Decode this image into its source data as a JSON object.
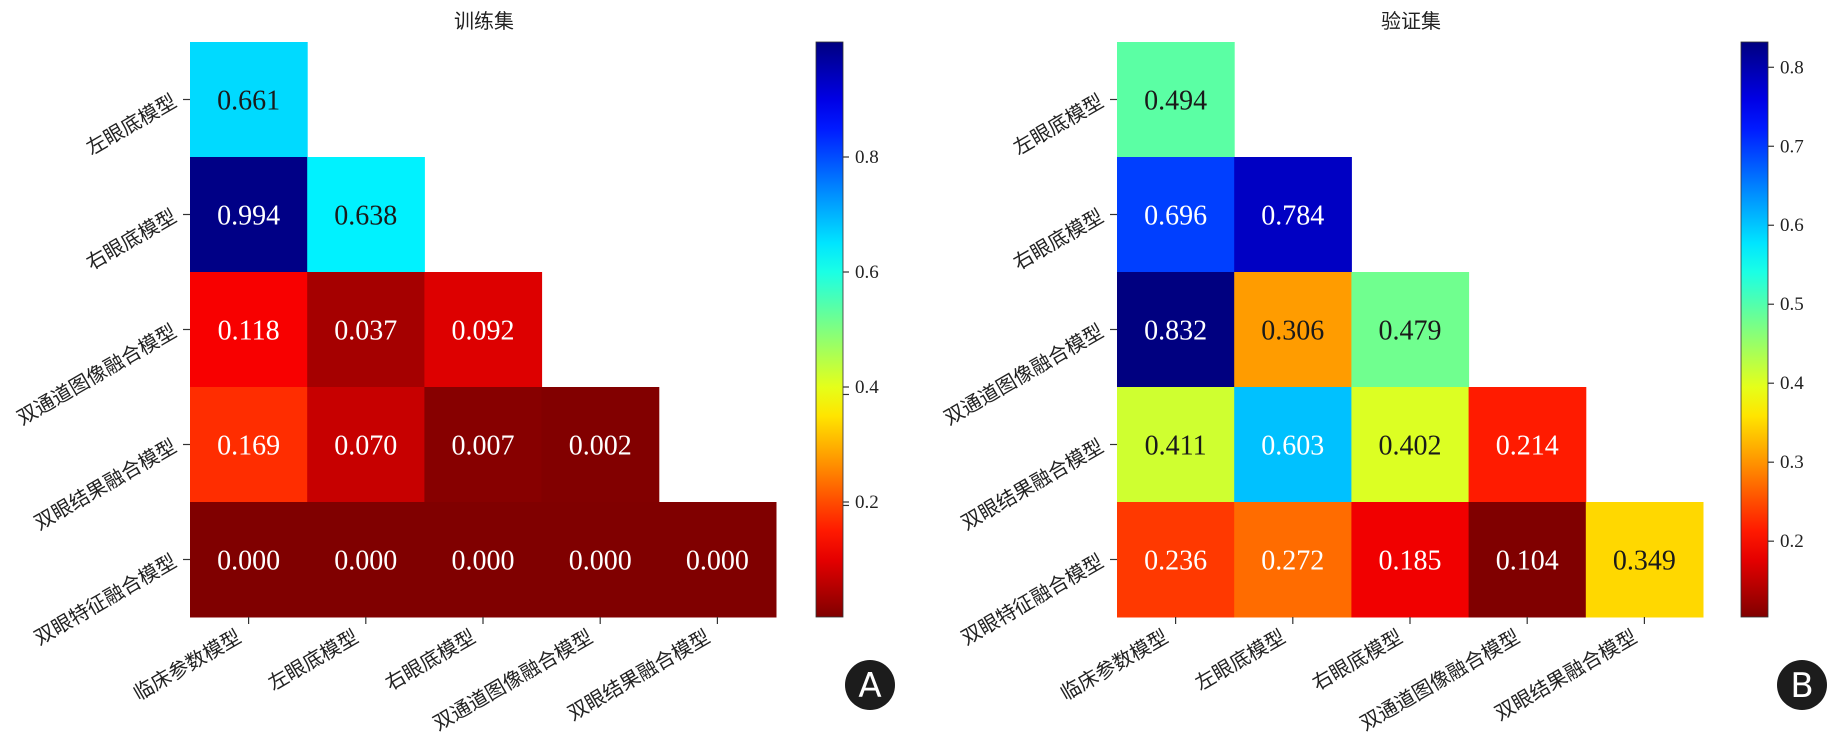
{
  "chart_data": [
    {
      "panel": "A",
      "type": "heatmap",
      "title": "训练集",
      "rows": [
        "左眼底模型",
        "右眼底模型",
        "双通道图像融合模型",
        "双眼结果融合模型",
        "双眼特征融合模型"
      ],
      "cols": [
        "临床参数模型",
        "左眼底模型",
        "右眼底模型",
        "双通道图像融合模型",
        "双眼结果融合模型"
      ],
      "values": [
        [
          0.661,
          null,
          null,
          null,
          null
        ],
        [
          0.994,
          0.638,
          null,
          null,
          null
        ],
        [
          0.118,
          0.037,
          0.092,
          null,
          null
        ],
        [
          0.169,
          0.07,
          0.007,
          0.002,
          null
        ],
        [
          0.0,
          0.0,
          0.0,
          0.0,
          0.0
        ]
      ],
      "labels": [
        [
          "0.661",
          "",
          "",
          "",
          ""
        ],
        [
          "0.994",
          "0.638",
          "",
          "",
          ""
        ],
        [
          "0.118",
          "0.037",
          "0.092",
          "",
          ""
        ],
        [
          "0.169",
          "0.070",
          "0.007",
          "0.002",
          ""
        ],
        [
          "0.000",
          "0.000",
          "0.000",
          "0.000",
          "0.000"
        ]
      ],
      "colormap": "jet_r",
      "vmin": 0.0,
      "vmax": 1.0,
      "colorbar_ticks": [
        0.8,
        0.6,
        0.4,
        0.2
      ],
      "colorbar_tick_labels": [
        "0.8",
        "0.6",
        "0.4",
        "0.2"
      ],
      "colorbar_unlabeled_ticks": [
        0.4,
        0.2
      ]
    },
    {
      "panel": "B",
      "type": "heatmap",
      "title": "验证集",
      "rows": [
        "左眼底模型",
        "右眼底模型",
        "双通道图像融合模型",
        "双眼结果融合模型",
        "双眼特征融合模型"
      ],
      "cols": [
        "临床参数模型",
        "左眼底模型",
        "右眼底模型",
        "双通道图像融合模型",
        "双眼结果融合模型"
      ],
      "values": [
        [
          0.494,
          null,
          null,
          null,
          null
        ],
        [
          0.696,
          0.784,
          null,
          null,
          null
        ],
        [
          0.832,
          0.306,
          0.479,
          null,
          null
        ],
        [
          0.411,
          0.603,
          0.402,
          0.214,
          null
        ],
        [
          0.236,
          0.272,
          0.185,
          0.104,
          0.349
        ]
      ],
      "labels": [
        [
          "0.494",
          "",
          "",
          "",
          ""
        ],
        [
          "0.696",
          "0.784",
          "",
          "",
          ""
        ],
        [
          "0.832",
          "0.306",
          "0.479",
          "",
          ""
        ],
        [
          "0.411",
          "0.603",
          "0.402",
          "0.214",
          ""
        ],
        [
          "0.236",
          "0.272",
          "0.185",
          "0.104",
          "0.349"
        ]
      ],
      "colormap": "jet_r",
      "vmin": 0.104,
      "vmax": 0.832,
      "colorbar_ticks": [
        0.8,
        0.7,
        0.6,
        0.5,
        0.4,
        0.3,
        0.2
      ],
      "colorbar_tick_labels": [
        "0.8",
        "0.7",
        "0.6",
        "0.5",
        "0.4",
        "0.3",
        "0.2"
      ],
      "colorbar_unlabeled_ticks": []
    }
  ],
  "badges": {
    "a": "A",
    "b": "B"
  },
  "colors": {
    "badge_bg": "#1c1c1c",
    "background": "#ffffff",
    "grid_line": "#ffffff"
  }
}
